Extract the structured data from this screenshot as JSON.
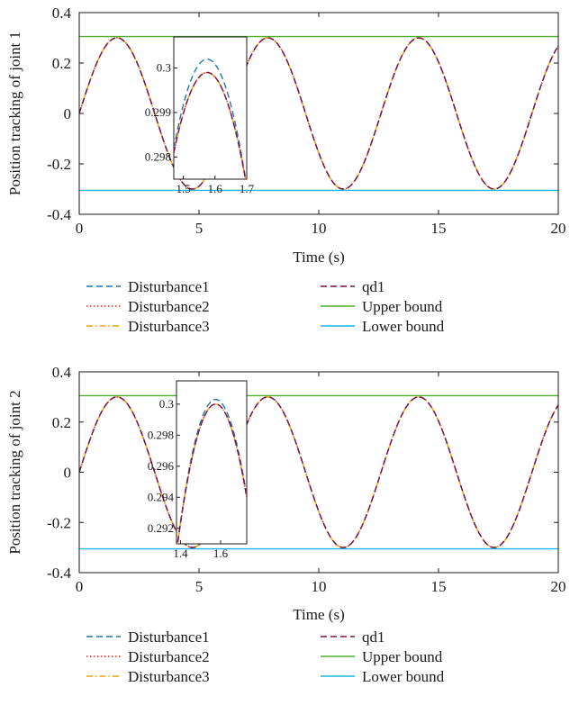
{
  "chart_data": [
    {
      "type": "line",
      "ylabel": "Position tracking of joint 1",
      "xlabel": "Time (s)",
      "xlim": [
        0,
        20
      ],
      "ylim": [
        -0.4,
        0.4
      ],
      "xticks": [
        0,
        5,
        10,
        15,
        20
      ],
      "yticks": [
        -0.4,
        -0.2,
        0,
        0.2,
        0.4
      ],
      "grid": false,
      "legend_position": "below",
      "series": [
        {
          "name": "Disturbance1",
          "color": "#1f77b4",
          "style": "dashed",
          "amplitude": 0.3,
          "period": 6.3,
          "x": [
            0,
            1.575,
            4.725,
            7.875,
            11.025,
            14.175,
            17.325,
            20
          ],
          "y": [
            0,
            0.3,
            -0.3,
            0.3,
            -0.3,
            0.3,
            -0.3,
            0.28
          ]
        },
        {
          "name": "Disturbance2",
          "color": "#d62728",
          "style": "dotted",
          "amplitude": 0.3,
          "period": 6.3,
          "x": [
            0,
            1.575,
            4.725,
            7.875,
            11.025,
            14.175,
            17.325,
            20
          ],
          "y": [
            0,
            0.3,
            -0.3,
            0.3,
            -0.3,
            0.3,
            -0.3,
            0.28
          ]
        },
        {
          "name": "Disturbance3",
          "color": "#f0a30a",
          "style": "dashdot",
          "amplitude": 0.3,
          "period": 6.3,
          "x": [
            0,
            1.575,
            4.725,
            7.875,
            11.025,
            14.175,
            17.325,
            20
          ],
          "y": [
            0,
            0.3,
            -0.3,
            0.3,
            -0.3,
            0.3,
            -0.3,
            0.28
          ]
        },
        {
          "name": "qd1",
          "color": "#7b1142",
          "style": "dashed",
          "amplitude": 0.3,
          "period": 6.3,
          "x": [
            0,
            1.575,
            4.725,
            7.875,
            11.025,
            14.175,
            17.325,
            20
          ],
          "y": [
            0,
            0.3,
            -0.3,
            0.3,
            -0.3,
            0.3,
            -0.3,
            0.28
          ]
        },
        {
          "name": "Upper bound",
          "color": "#4daf2a",
          "style": "solid",
          "constant": 0.305
        },
        {
          "name": "Lower bound",
          "color": "#19b6e0",
          "style": "solid",
          "constant": -0.305
        }
      ],
      "inset": {
        "xlim": [
          1.47,
          1.7
        ],
        "ylim": [
          0.2975,
          0.3007
        ],
        "xticks": [
          1.5,
          1.6,
          1.7
        ],
        "yticks": [
          0.298,
          0.299,
          0.3
        ],
        "peak_x": 1.575,
        "peak_upper": 0.3002,
        "peak_lower": 0.2999
      }
    },
    {
      "type": "line",
      "ylabel": "Position tracking of joint 2",
      "xlabel": "Time (s)",
      "xlim": [
        0,
        20
      ],
      "ylim": [
        -0.4,
        0.4
      ],
      "xticks": [
        0,
        5,
        10,
        15,
        20
      ],
      "yticks": [
        -0.4,
        -0.2,
        0,
        0.2,
        0.4
      ],
      "grid": false,
      "legend_position": "below",
      "series": [
        {
          "name": "Disturbance1",
          "color": "#1f77b4",
          "style": "dashed",
          "amplitude": 0.3,
          "period": 6.3,
          "x": [
            0,
            1.575,
            4.725,
            7.875,
            11.025,
            14.175,
            17.325,
            20
          ],
          "y": [
            0,
            0.3,
            -0.3,
            0.3,
            -0.3,
            0.3,
            -0.3,
            0.28
          ]
        },
        {
          "name": "Disturbance2",
          "color": "#d62728",
          "style": "dotted",
          "amplitude": 0.3,
          "period": 6.3,
          "x": [
            0,
            1.575,
            4.725,
            7.875,
            11.025,
            14.175,
            17.325,
            20
          ],
          "y": [
            0,
            0.3,
            -0.3,
            0.3,
            -0.3,
            0.3,
            -0.3,
            0.28
          ]
        },
        {
          "name": "Disturbance3",
          "color": "#f0a30a",
          "style": "dashdot",
          "amplitude": 0.3,
          "period": 6.3,
          "x": [
            0,
            1.575,
            4.725,
            7.875,
            11.025,
            14.175,
            17.325,
            20
          ],
          "y": [
            0,
            0.3,
            -0.3,
            0.3,
            -0.3,
            0.3,
            -0.3,
            0.28
          ]
        },
        {
          "name": "qd1",
          "color": "#7b1142",
          "style": "dashed",
          "amplitude": 0.3,
          "period": 6.3,
          "x": [
            0,
            1.575,
            4.725,
            7.875,
            11.025,
            14.175,
            17.325,
            20
          ],
          "y": [
            0,
            0.3,
            -0.3,
            0.3,
            -0.3,
            0.3,
            -0.3,
            0.28
          ]
        },
        {
          "name": "Upper bound",
          "color": "#4daf2a",
          "style": "solid",
          "constant": 0.305
        },
        {
          "name": "Lower bound",
          "color": "#19b6e0",
          "style": "solid",
          "constant": -0.305
        }
      ],
      "inset": {
        "xlim": [
          1.38,
          1.73
        ],
        "ylim": [
          0.291,
          0.3015
        ],
        "xticks": [
          1.4,
          1.6
        ],
        "yticks": [
          0.292,
          0.294,
          0.296,
          0.298,
          0.3
        ],
        "peak_x": 1.575,
        "peak_upper": 0.3003,
        "peak_lower": 0.3
      }
    }
  ]
}
